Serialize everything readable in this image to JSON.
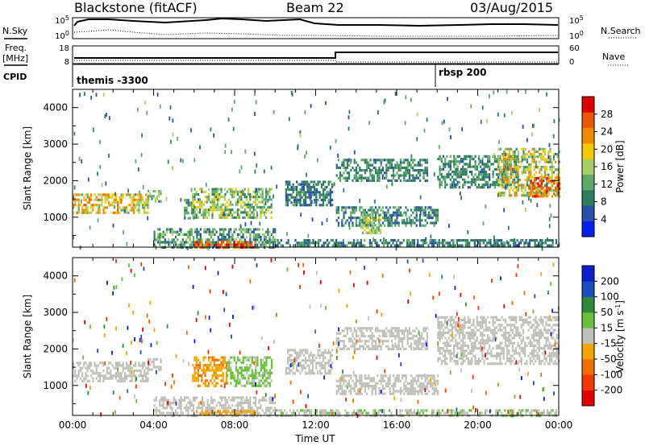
{
  "header": {
    "title": "Blackstone (fitACF)",
    "beam": "Beam 22",
    "date": "03/Aug/2015"
  },
  "top_panels": {
    "nsky_label": "N.Sky",
    "nsearch_label": "N.Search",
    "freq_label_1": "Freq.",
    "freq_label_2": "[MHz]",
    "nave_label": "Nave",
    "cpid_label": "CPID",
    "cpid_1": "themis -3300",
    "cpid_2": "rbsp 200",
    "noise_ticks": [
      "10^5",
      "10^0"
    ],
    "noise_ticks_right": [
      "10^5",
      "10^0"
    ],
    "freq_ticks": [
      "18",
      "8"
    ],
    "nave_ticks": [
      "60",
      "0"
    ]
  },
  "colors": {
    "power_scale": [
      "#0022ee",
      "#2a4faa",
      "#2e7d5e",
      "#5faa6a",
      "#a8d068",
      "#f5c800",
      "#f08a00",
      "#ee5500",
      "#dd0000"
    ],
    "velocity_scale": [
      "#0a1fcc",
      "#1a4ec0",
      "#2c8a3a",
      "#66c03a",
      "#c0c0b8",
      "#f2a500",
      "#f06e00",
      "#ee3a00",
      "#e00000"
    ],
    "ground_scatter": "#c0c0b8"
  },
  "chart_data": [
    {
      "type": "heatmap",
      "name": "power",
      "xlabel": "",
      "ylabel": "Slant Range [km]",
      "xlim_hours": [
        0,
        24
      ],
      "ylim": [
        180,
        4500
      ],
      "yticks": [
        "4000",
        "3000",
        "2000",
        "1000"
      ],
      "colorbar": {
        "label": "Power [dB]",
        "ticks": [
          "28",
          "24",
          "20",
          "16",
          "12",
          "8",
          "4"
        ],
        "range": [
          0,
          30
        ]
      },
      "regions": [
        {
          "x": [
            0,
            3.7
          ],
          "y": [
            1100,
            1650
          ],
          "value": 18,
          "spread": 6
        },
        {
          "x": [
            3.7,
            4.4
          ],
          "y": [
            1400,
            1750
          ],
          "value": 12,
          "spread": 4
        },
        {
          "x": [
            5.5,
            6.0
          ],
          "y": [
            1000,
            1500
          ],
          "value": 9,
          "spread": 4
        },
        {
          "x": [
            5.9,
            7.5
          ],
          "y": [
            1000,
            1800
          ],
          "value": 14,
          "spread": 6
        },
        {
          "x": [
            7.5,
            9.8
          ],
          "y": [
            1000,
            1800
          ],
          "value": 13,
          "spread": 5
        },
        {
          "x": [
            4.0,
            10.0
          ],
          "y": [
            200,
            700
          ],
          "value": 10,
          "spread": 5
        },
        {
          "x": [
            6.0,
            9.0
          ],
          "y": [
            200,
            350
          ],
          "value": 24,
          "spread": 4
        },
        {
          "x": [
            10.5,
            12.8
          ],
          "y": [
            1300,
            2000
          ],
          "value": 8,
          "spread": 3
        },
        {
          "x": [
            13.0,
            17.5
          ],
          "y": [
            2000,
            2600
          ],
          "value": 9,
          "spread": 3
        },
        {
          "x": [
            13.0,
            18.0
          ],
          "y": [
            800,
            1300
          ],
          "value": 9,
          "spread": 4
        },
        {
          "x": [
            14.2,
            15.2
          ],
          "y": [
            600,
            1100
          ],
          "value": 14,
          "spread": 4
        },
        {
          "x": [
            18.0,
            22.0
          ],
          "y": [
            1800,
            2700
          ],
          "value": 9,
          "spread": 3
        },
        {
          "x": [
            21.0,
            24.0
          ],
          "y": [
            1600,
            2900
          ],
          "value": 16,
          "spread": 7
        },
        {
          "x": [
            22.5,
            24.0
          ],
          "y": [
            1600,
            2100
          ],
          "value": 24,
          "spread": 4
        },
        {
          "x": [
            10.0,
            24.0
          ],
          "y": [
            200,
            400
          ],
          "value": 8,
          "spread": 3
        }
      ]
    },
    {
      "type": "heatmap",
      "name": "velocity",
      "xlabel": "Time UT",
      "ylabel": "Slant Range [km]",
      "xlim_hours": [
        0,
        24
      ],
      "xticks": [
        "00:00",
        "04:00",
        "08:00",
        "12:00",
        "16:00",
        "20:00",
        "00:00"
      ],
      "ylim": [
        180,
        4500
      ],
      "yticks": [
        "4000",
        "3000",
        "2000",
        "1000"
      ],
      "colorbar": {
        "label": "Velocity [m s^-1]",
        "ticks": [
          "200",
          "100",
          "50",
          "15",
          "-15",
          "-50",
          "-100",
          "-200"
        ],
        "range": [
          -250,
          250
        ]
      },
      "regions": [
        {
          "x": [
            0,
            3.7
          ],
          "y": [
            1100,
            1650
          ],
          "value": 0,
          "spread": 10
        },
        {
          "x": [
            3.7,
            4.4
          ],
          "y": [
            1400,
            1750
          ],
          "value": 0,
          "spread": 10
        },
        {
          "x": [
            5.9,
            7.6
          ],
          "y": [
            1000,
            1800
          ],
          "value": -70,
          "spread": 40
        },
        {
          "x": [
            7.6,
            9.8
          ],
          "y": [
            1000,
            1800
          ],
          "value": 45,
          "spread": 35
        },
        {
          "x": [
            4.0,
            10.0
          ],
          "y": [
            200,
            700
          ],
          "value": 0,
          "spread": 12
        },
        {
          "x": [
            6.0,
            9.0
          ],
          "y": [
            200,
            320
          ],
          "value": -60,
          "spread": 30
        },
        {
          "x": [
            10.5,
            12.8
          ],
          "y": [
            1300,
            2000
          ],
          "value": 0,
          "spread": 10
        },
        {
          "x": [
            13.0,
            17.5
          ],
          "y": [
            2000,
            2600
          ],
          "value": 0,
          "spread": 10
        },
        {
          "x": [
            13.0,
            18.0
          ],
          "y": [
            800,
            1300
          ],
          "value": 0,
          "spread": 10
        },
        {
          "x": [
            18.0,
            24.0
          ],
          "y": [
            1600,
            2900
          ],
          "value": 0,
          "spread": 10
        },
        {
          "x": [
            10.0,
            24.0
          ],
          "y": [
            200,
            350
          ],
          "value": 20,
          "spread": 20
        }
      ]
    }
  ]
}
